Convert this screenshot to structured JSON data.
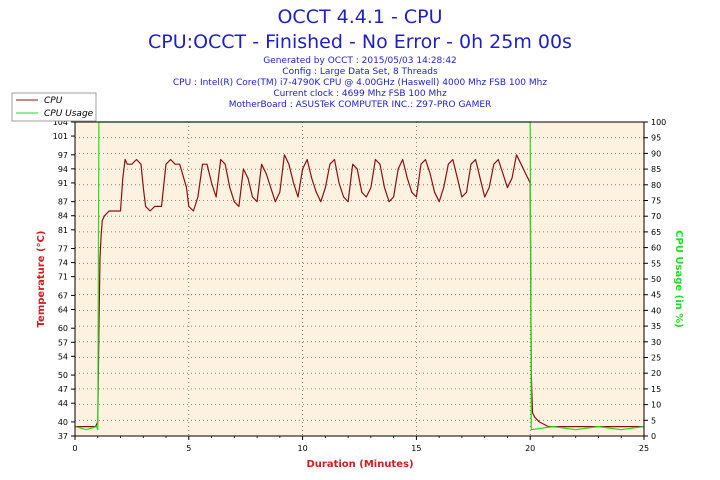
{
  "header": {
    "title": "OCCT 4.4.1 - CPU",
    "subtitle": "CPU:OCCT - Finished - No Error - 0h 25m 00s",
    "info_lines": [
      "Generated by OCCT : 2015/05/03 14:28:42",
      "Config : Large Data Set, 8 Threads",
      "CPU : Intel(R) Core(TM) i7-4790K CPU @ 4.00GHz (Haswell) 4000 Mhz FSB 100 Mhz",
      "Current clock : 4699 Mhz FSB 100 Mhz",
      "MotherBoard : ASUSTeK COMPUTER INC.: Z97-PRO GAMER"
    ]
  },
  "colors": {
    "temperature": "#8b1010",
    "usage": "#22dd22",
    "plot_background": "#fdf2e0",
    "title": "#1f1fc8",
    "axis_label": "#cc2020"
  },
  "chart_data": {
    "type": "line",
    "xlabel": "Duration (Minutes)",
    "ylabel_left": "Temperature (°C)",
    "ylabel_right": "CPU Usage (in %)",
    "xlim": [
      0,
      25
    ],
    "ylim_left": [
      37,
      104
    ],
    "ylim_right": [
      0,
      100
    ],
    "x_ticks": [
      0,
      5,
      10,
      15,
      20,
      25
    ],
    "y_left_ticks": [
      37,
      40,
      44,
      47,
      50,
      54,
      57,
      60,
      64,
      67,
      71,
      74,
      77,
      81,
      84,
      87,
      91,
      94,
      97,
      101,
      104
    ],
    "y_right_ticks": [
      0,
      5,
      10,
      15,
      20,
      25,
      30,
      35,
      40,
      45,
      50,
      55,
      60,
      65,
      70,
      75,
      80,
      85,
      90,
      95,
      100
    ],
    "grid": true,
    "legend_position": "top-left",
    "series": [
      {
        "name": "CPU",
        "axis": "left",
        "x": [
          0,
          0.4,
          0.9,
          1.0,
          1.05,
          1.1,
          1.15,
          1.2,
          1.3,
          1.5,
          1.8,
          2.0,
          2.1,
          2.2,
          2.3,
          2.5,
          2.7,
          2.9,
          3.0,
          3.1,
          3.3,
          3.5,
          3.8,
          4.0,
          4.2,
          4.4,
          4.6,
          4.9,
          5.0,
          5.2,
          5.4,
          5.6,
          5.8,
          6.0,
          6.2,
          6.4,
          6.6,
          6.8,
          7.0,
          7.2,
          7.4,
          7.6,
          7.8,
          8.0,
          8.2,
          8.4,
          8.6,
          8.8,
          9.0,
          9.2,
          9.4,
          9.6,
          9.8,
          10.0,
          10.2,
          10.4,
          10.6,
          10.8,
          11.0,
          11.2,
          11.4,
          11.6,
          11.8,
          12.0,
          12.2,
          12.4,
          12.6,
          12.8,
          13.0,
          13.2,
          13.4,
          13.6,
          13.8,
          14.0,
          14.2,
          14.4,
          14.6,
          14.8,
          15.0,
          15.2,
          15.4,
          15.6,
          15.8,
          16.0,
          16.2,
          16.4,
          16.6,
          16.8,
          17.0,
          17.2,
          17.4,
          17.6,
          17.8,
          18.0,
          18.2,
          18.4,
          18.6,
          18.8,
          19.0,
          19.2,
          19.4,
          19.6,
          19.8,
          19.9,
          20.0,
          20.05,
          20.1,
          20.2,
          20.4,
          20.8,
          21.5,
          22.5,
          23.5,
          24.5,
          25.0
        ],
        "values": [
          39,
          39,
          39,
          40,
          60,
          75,
          80,
          83,
          84,
          85,
          85,
          85,
          92,
          96,
          95,
          95,
          96,
          95,
          90,
          86,
          85,
          86,
          86,
          95,
          96,
          95,
          95,
          90,
          86,
          85,
          88,
          95,
          95,
          91,
          88,
          96,
          95,
          90,
          87,
          86,
          94,
          92,
          88,
          87,
          95,
          93,
          90,
          87,
          89,
          97,
          95,
          91,
          88,
          94,
          96,
          92,
          89,
          87,
          90,
          95,
          96,
          91,
          88,
          87,
          95,
          94,
          89,
          88,
          90,
          96,
          95,
          90,
          87,
          88,
          94,
          96,
          92,
          89,
          88,
          95,
          96,
          93,
          89,
          87,
          90,
          95,
          96,
          92,
          88,
          89,
          95,
          96,
          92,
          88,
          90,
          95,
          96,
          93,
          90,
          92,
          97,
          95,
          93,
          92,
          91,
          50,
          42,
          41,
          40,
          39,
          39,
          39,
          39,
          39,
          39
        ]
      },
      {
        "name": "CPU Usage",
        "axis": "right",
        "x": [
          0,
          0.5,
          0.95,
          1.0,
          1.05,
          2.0,
          5.0,
          10.0,
          15.0,
          19.95,
          20.0,
          20.05,
          21.0,
          22.0,
          23.0,
          24.0,
          25.0
        ],
        "values": [
          3,
          2,
          3,
          2,
          100,
          100,
          100,
          100,
          100,
          100,
          100,
          2,
          3,
          2,
          3,
          2,
          3
        ]
      }
    ]
  }
}
